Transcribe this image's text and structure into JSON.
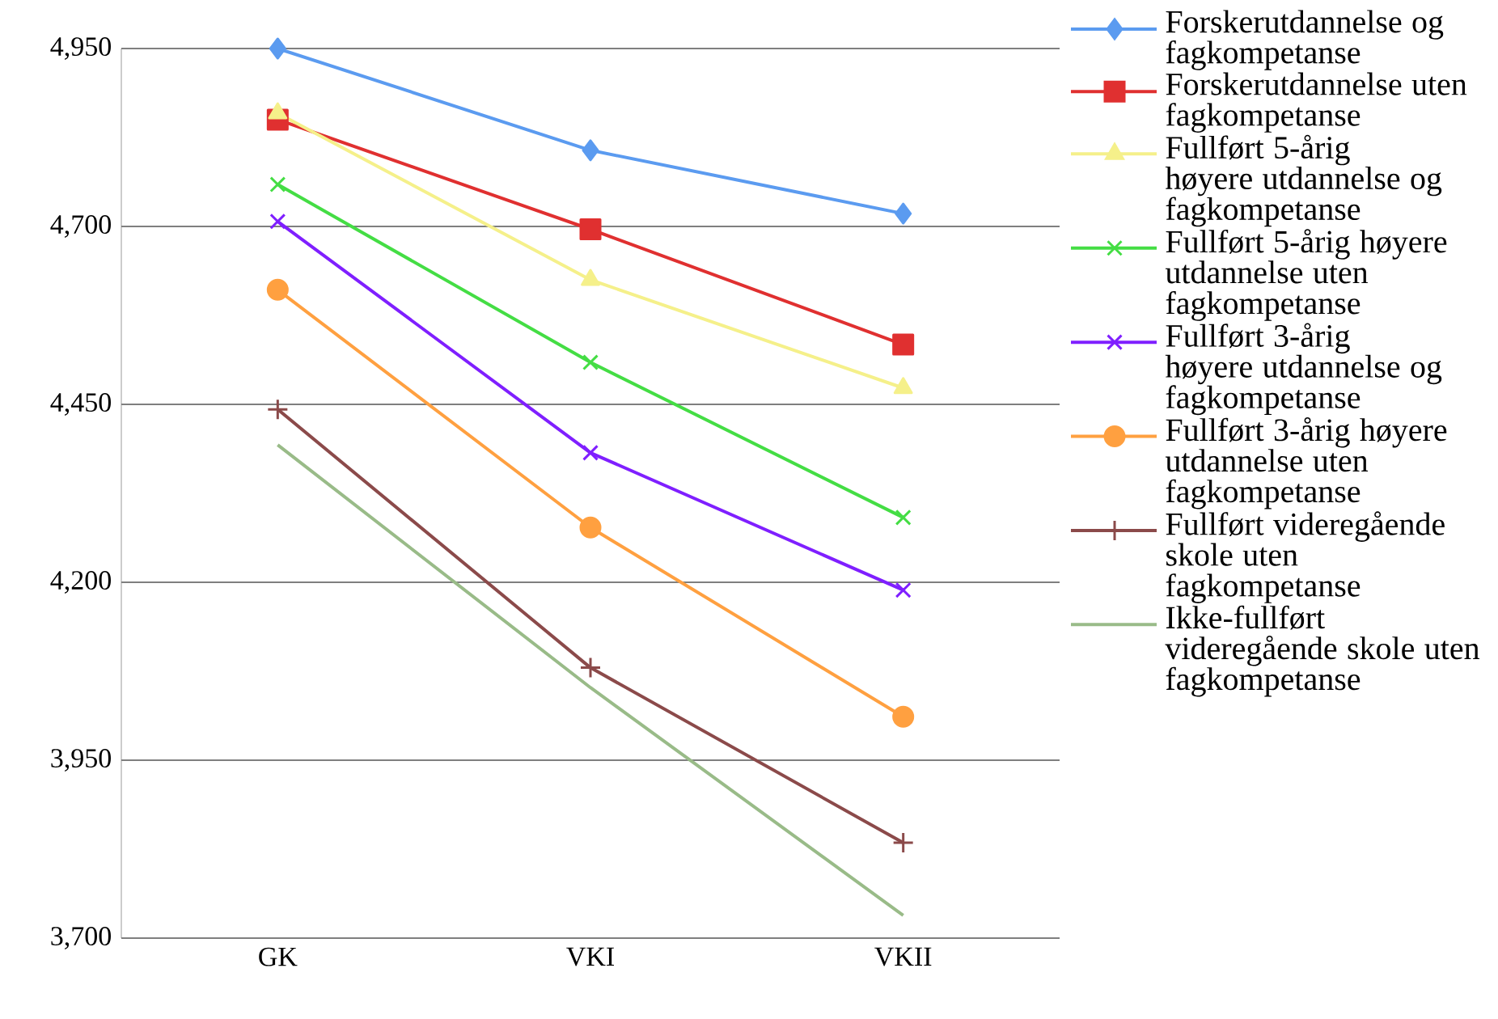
{
  "chart_data": {
    "type": "line",
    "categories": [
      "GK",
      "VKI",
      "VKII"
    ],
    "series": [
      {
        "name": "Forskerutdannelse og fagkompetanse",
        "color": "#5b9bf0",
        "marker": "diamond",
        "values": [
          4950,
          4807,
          4718
        ]
      },
      {
        "name": "Forskerutdannelse uten fagkompetanse",
        "color": "#e03030",
        "marker": "square",
        "values": [
          4850,
          4696,
          4534
        ]
      },
      {
        "name": "Fullført 5-årig høyere utdannelse og fagkompetanse",
        "color": "#f5f08a",
        "marker": "triangle",
        "values": [
          4859,
          4625,
          4473
        ]
      },
      {
        "name": "Fullført 5-årig høyere utdannelse uten fagkompetanse",
        "color": "#44dd44",
        "marker": "cross",
        "values": [
          4759,
          4509,
          4291
        ]
      },
      {
        "name": "Fullført 3-årig høyere utdannelse og fagkompetanse",
        "color": "#7f1fff",
        "marker": "cross",
        "values": [
          4707,
          4382,
          4189
        ]
      },
      {
        "name": "Fullført 3-årig høyere utdannelse uten fagkompetanse",
        "color": "#ffa040",
        "marker": "circle",
        "values": [
          4611,
          4277,
          4011
        ]
      },
      {
        "name": "Fullført videregående skole uten fagkompetanse",
        "color": "#8b4a4a",
        "marker": "plus",
        "values": [
          4443,
          4080,
          3834
        ]
      },
      {
        "name": "Ikke-fullført videregående skole uten fagkompetanse",
        "color": "#99bb88",
        "marker": "none",
        "values": [
          4393,
          4052,
          3732
        ]
      }
    ],
    "ylim": [
      3700,
      4950
    ],
    "yticks": [
      {
        "value": 3700,
        "label": "3,700"
      },
      {
        "value": 3950,
        "label": "3,950"
      },
      {
        "value": 4200,
        "label": "4,200"
      },
      {
        "value": 4450,
        "label": "4,450"
      },
      {
        "value": 4700,
        "label": "4,700"
      },
      {
        "value": 4950,
        "label": "4,950"
      }
    ],
    "grid": "y",
    "legend": "right"
  }
}
